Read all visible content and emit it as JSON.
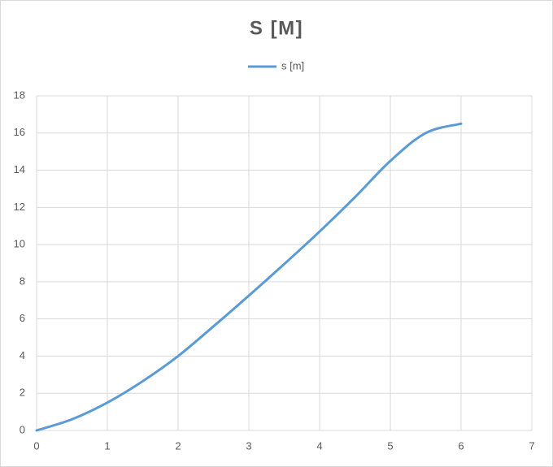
{
  "chart_data": {
    "type": "line",
    "title": "S [M]",
    "x": [
      0,
      0.5,
      1,
      1.5,
      2,
      2.5,
      3,
      3.5,
      4,
      4.5,
      5,
      5.5,
      6
    ],
    "series": [
      {
        "name": "s [m]",
        "color": "#5b9bd5",
        "values": [
          0,
          0.6,
          1.5,
          2.65,
          4,
          5.6,
          7.25,
          8.95,
          10.7,
          12.55,
          14.5,
          16.0,
          16.5
        ]
      }
    ],
    "xlim": [
      0,
      7
    ],
    "xticks": [
      0,
      1,
      2,
      3,
      4,
      5,
      6,
      7
    ],
    "ylim": [
      0,
      18
    ],
    "yticks": [
      0,
      2,
      4,
      6,
      8,
      10,
      12,
      14,
      16,
      18
    ],
    "grid": true,
    "legend": "top"
  }
}
